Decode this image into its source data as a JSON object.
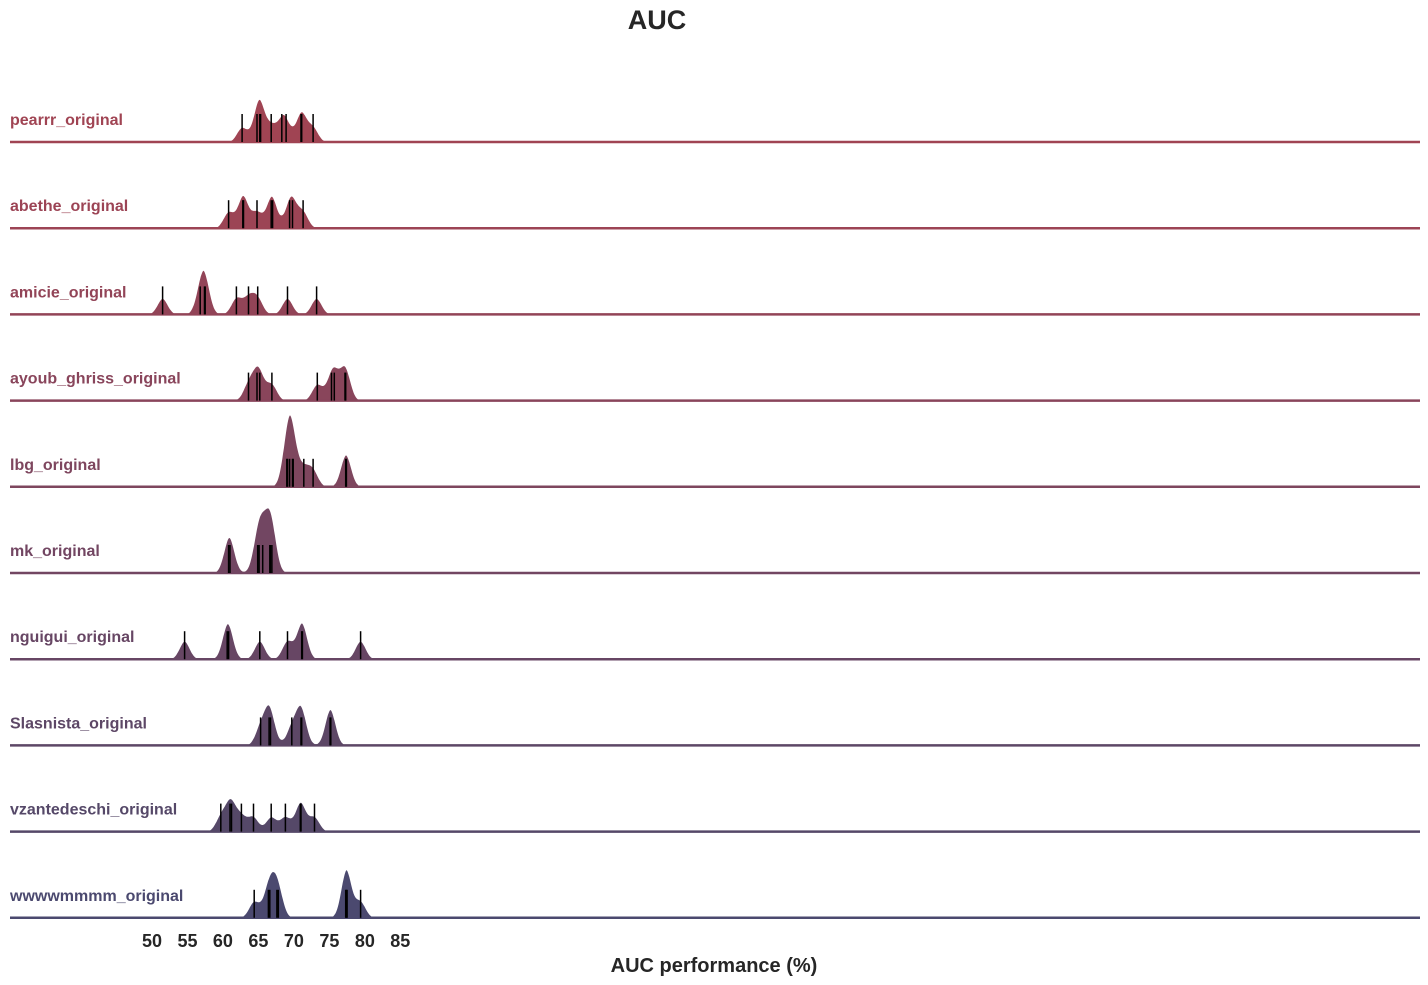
{
  "chart_data": {
    "type": "ridgeline",
    "title": "AUC",
    "xlabel": "AUC performance (%)",
    "ylabel": "",
    "xlim": [
      46,
      86
    ],
    "xticks": [
      50,
      55,
      60,
      65,
      70,
      75,
      80,
      85
    ],
    "grid": false,
    "series": [
      {
        "name": "pearrr_original",
        "color": "#a04453",
        "values": [
          62.7,
          64.8,
          65.2,
          65.3,
          66.8,
          68.3,
          68.9,
          71.0,
          71.1,
          72.7
        ]
      },
      {
        "name": "abethe_original",
        "color": "#9c4455",
        "values": [
          60.8,
          62.8,
          62.9,
          64.8,
          66.8,
          67.0,
          69.4,
          69.8,
          71.3
        ]
      },
      {
        "name": "amicie_original",
        "color": "#924457",
        "values": [
          51.5,
          56.8,
          57.4,
          57.5,
          61.9,
          63.6,
          64.9,
          69.1,
          73.2
        ]
      },
      {
        "name": "ayoub_ghriss_original",
        "color": "#89455b",
        "values": [
          63.6,
          64.8,
          65.2,
          66.9,
          73.3,
          75.3,
          75.7,
          77.2,
          77.3
        ]
      },
      {
        "name": "lbg_original",
        "color": "#7e465e",
        "values": [
          69.0,
          69.1,
          69.4,
          69.8,
          69.9,
          71.4,
          72.7,
          77.3,
          77.4
        ]
      },
      {
        "name": "mk_original",
        "color": "#724662",
        "values": [
          60.8,
          61.0,
          64.9,
          65.1,
          65.6,
          66.6,
          66.7,
          66.9
        ]
      },
      {
        "name": "nguigui_original",
        "color": "#674664",
        "values": [
          54.6,
          60.6,
          60.8,
          65.2,
          69.1,
          71.1,
          71.2,
          79.4
        ]
      },
      {
        "name": "Slasnista_original",
        "color": "#5d4766",
        "values": [
          65.3,
          66.5,
          66.7,
          69.7,
          71.0,
          71.1,
          75.1,
          75.2
        ]
      },
      {
        "name": "vzantedeschi_original",
        "color": "#554868",
        "values": [
          59.7,
          61.0,
          61.2,
          62.6,
          64.3,
          66.8,
          68.8,
          70.9,
          71.0,
          72.9
        ]
      },
      {
        "name": "wwwwmmmm_original",
        "color": "#4b496f",
        "values": [
          64.4,
          66.4,
          66.6,
          67.6,
          67.8,
          77.3,
          77.4,
          77.5,
          79.4
        ]
      }
    ]
  }
}
